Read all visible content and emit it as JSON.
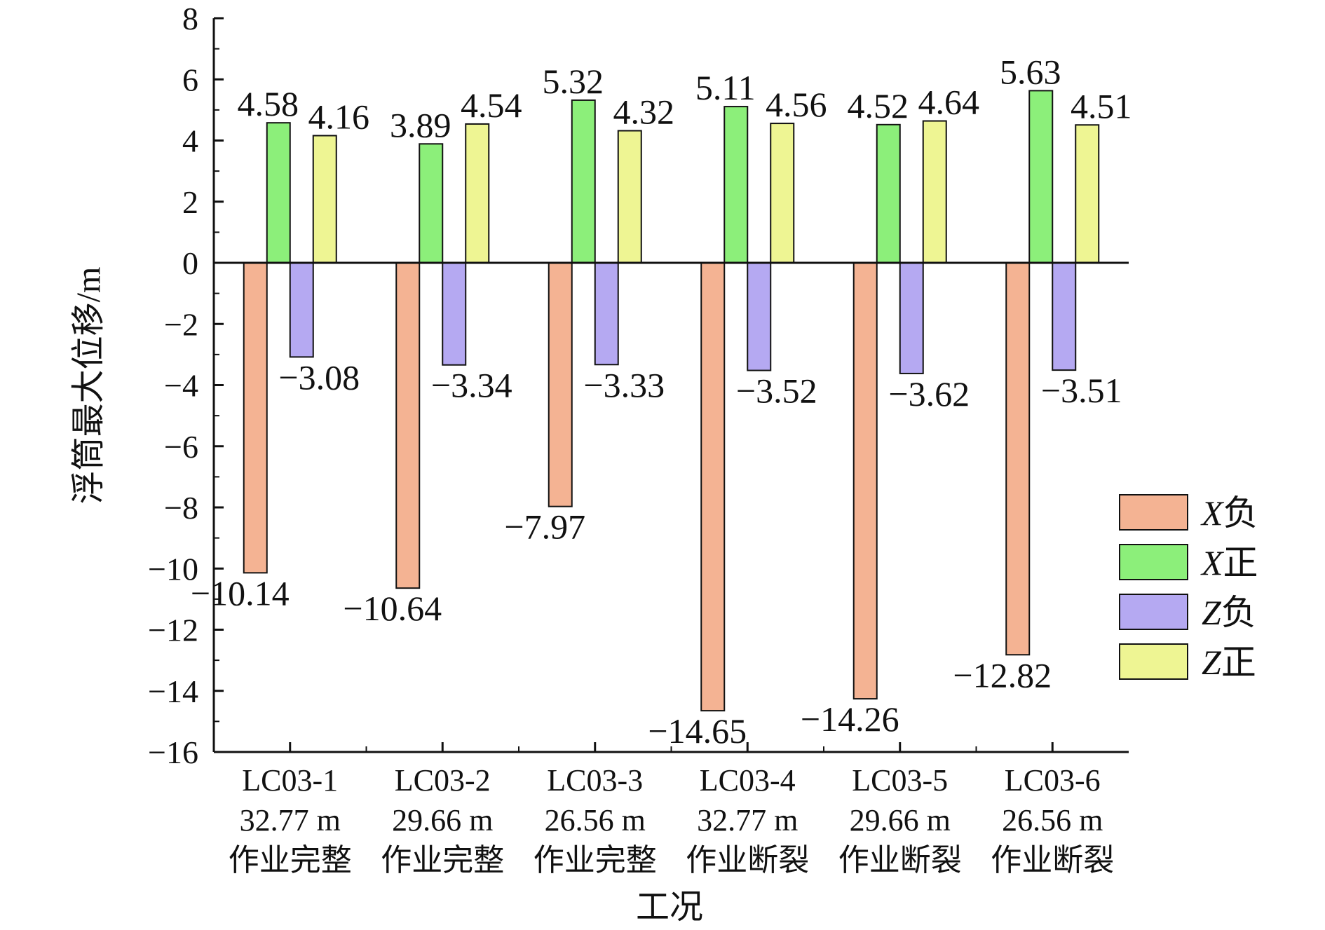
{
  "chart_data": {
    "type": "bar",
    "title": "",
    "xlabel": "工况",
    "ylabel": "浮筒最大位移/m",
    "ylim": [
      -16,
      8
    ],
    "yticks": [
      8,
      6,
      4,
      2,
      0,
      -2,
      -4,
      -6,
      -8,
      -10,
      -12,
      -14,
      -16
    ],
    "grid": false,
    "legend_position": "right",
    "categories": [
      [
        "LC03-1",
        "32.77 m",
        "作业完整"
      ],
      [
        "LC03-2",
        "29.66 m",
        "作业完整"
      ],
      [
        "LC03-3",
        "26.56 m",
        "作业完整"
      ],
      [
        "LC03-4",
        "32.77 m",
        "作业断裂"
      ],
      [
        "LC03-5",
        "29.66 m",
        "作业断裂"
      ],
      [
        "LC03-6",
        "26.56 m",
        "作业断裂"
      ]
    ],
    "series": [
      {
        "var": "X",
        "suffix": "负",
        "color": "#F4B393",
        "values": [
          -10.14,
          -10.64,
          -7.97,
          -14.65,
          -14.26,
          -12.82
        ]
      },
      {
        "var": "X",
        "suffix": "正",
        "color": "#8CEF7A",
        "values": [
          4.58,
          3.89,
          5.32,
          5.11,
          4.52,
          5.63
        ]
      },
      {
        "var": "Z",
        "suffix": "负",
        "color": "#B5A9F2",
        "values": [
          -3.08,
          -3.34,
          -3.33,
          -3.52,
          -3.62,
          -3.51
        ]
      },
      {
        "var": "Z",
        "suffix": "正",
        "color": "#EEF593",
        "values": [
          4.16,
          4.54,
          4.32,
          4.56,
          4.64,
          4.51
        ]
      }
    ],
    "data_labels": [
      [
        "−10.14",
        "4.58",
        "−3.08",
        "4.16"
      ],
      [
        "−10.64",
        "3.89",
        "−3.34",
        "4.54"
      ],
      [
        "−7.97",
        "5.32",
        "−3.33",
        "4.32"
      ],
      [
        "−14.65",
        "5.11",
        "−3.52",
        "4.56"
      ],
      [
        "−14.26",
        "4.52",
        "−3.62",
        "4.64"
      ],
      [
        "−12.82",
        "5.63",
        "−3.51",
        "4.51"
      ]
    ],
    "tick_labels": [
      "8",
      "6",
      "4",
      "2",
      "0",
      "−2",
      "−4",
      "−6",
      "−8",
      "−10",
      "−12",
      "−14",
      "−16"
    ]
  }
}
